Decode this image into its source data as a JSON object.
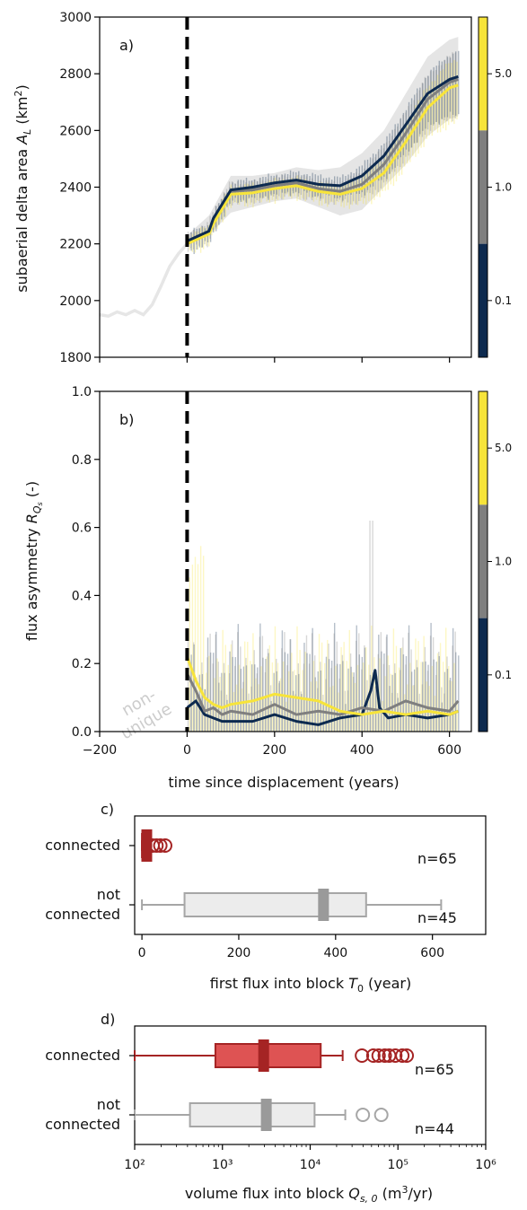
{
  "colors": {
    "navy": "#0d2a4f",
    "gray": "#7f7f7f",
    "yellow": "#f7e43a",
    "band": "#e5e5e5",
    "pre": "#e6e6e6",
    "red": "#a52424",
    "red_fill": "#dc4a4a",
    "box_gray": "#ececec",
    "box_edge": "#a6a6a6"
  },
  "chart_data": [
    {
      "panel": "a)",
      "type": "line",
      "xlabel": "",
      "ylabel": "subaerial delta area A_L (km²)",
      "xlim": [
        -200,
        650
      ],
      "ylim": [
        1800,
        3000
      ],
      "yticks": [
        1800,
        2000,
        2200,
        2400,
        2600,
        2800,
        3000
      ],
      "xticks": [
        -200,
        0,
        200,
        400,
        600
      ],
      "displacement_x": 0,
      "pre_displacement": {
        "x": [
          -200,
          -180,
          -160,
          -140,
          -120,
          -100,
          -80,
          -60,
          -40,
          -20,
          0
        ],
        "y": [
          1950,
          1945,
          1960,
          1950,
          1965,
          1950,
          1985,
          2050,
          2120,
          2165,
          2200
        ]
      },
      "band": {
        "x": [
          0,
          50,
          100,
          150,
          200,
          250,
          300,
          350,
          400,
          450,
          500,
          550,
          600,
          620
        ],
        "upper": [
          2230,
          2300,
          2440,
          2440,
          2450,
          2470,
          2460,
          2470,
          2520,
          2600,
          2730,
          2860,
          2920,
          2930
        ],
        "lower": [
          2200,
          2230,
          2310,
          2330,
          2350,
          2360,
          2330,
          2300,
          2320,
          2400,
          2480,
          2580,
          2640,
          2650
        ]
      },
      "series": [
        {
          "key": "navy",
          "x": [
            0,
            50,
            60,
            100,
            150,
            200,
            250,
            300,
            350,
            400,
            450,
            500,
            550,
            600,
            620
          ],
          "y": [
            2210,
            2245,
            2290,
            2390,
            2400,
            2415,
            2425,
            2410,
            2405,
            2440,
            2510,
            2620,
            2730,
            2780,
            2790
          ]
        },
        {
          "key": "gray",
          "x": [
            0,
            50,
            60,
            100,
            150,
            200,
            250,
            300,
            350,
            400,
            450,
            500,
            550,
            600,
            620
          ],
          "y": [
            2210,
            2240,
            2280,
            2385,
            2390,
            2405,
            2415,
            2395,
            2385,
            2410,
            2480,
            2590,
            2710,
            2770,
            2780
          ]
        },
        {
          "key": "yellow",
          "x": [
            0,
            50,
            60,
            100,
            150,
            200,
            250,
            300,
            350,
            400,
            450,
            500,
            550,
            600,
            620
          ],
          "y": [
            2200,
            2235,
            2270,
            2375,
            2380,
            2395,
            2405,
            2385,
            2375,
            2395,
            2450,
            2560,
            2680,
            2750,
            2760
          ]
        }
      ],
      "colorbar": {
        "labels": [
          "5.0",
          "1.0",
          "0.1"
        ]
      }
    },
    {
      "panel": "b)",
      "type": "line",
      "xlabel": "time since displacement (years)",
      "ylabel": "flux asymmetry R_Qs (-)",
      "xlim": [
        -200,
        650
      ],
      "ylim": [
        0,
        1.0
      ],
      "yticks": [
        0.0,
        0.2,
        0.4,
        0.6,
        0.8,
        1.0
      ],
      "xticks": [
        -200,
        0,
        200,
        400,
        600
      ],
      "annotation": "non-unique",
      "displacement_x": 0,
      "series": [
        {
          "key": "navy",
          "x": [
            0,
            20,
            40,
            60,
            80,
            100,
            150,
            200,
            250,
            300,
            350,
            400,
            420,
            430,
            440,
            460,
            500,
            550,
            600,
            620
          ],
          "y": [
            0.07,
            0.09,
            0.05,
            0.04,
            0.03,
            0.03,
            0.03,
            0.05,
            0.03,
            0.02,
            0.04,
            0.05,
            0.12,
            0.18,
            0.07,
            0.04,
            0.05,
            0.04,
            0.05,
            0.06
          ]
        },
        {
          "key": "gray",
          "x": [
            0,
            20,
            40,
            60,
            80,
            100,
            150,
            200,
            250,
            300,
            350,
            400,
            450,
            500,
            550,
            600,
            620
          ],
          "y": [
            0.17,
            0.12,
            0.06,
            0.07,
            0.05,
            0.06,
            0.05,
            0.08,
            0.05,
            0.06,
            0.05,
            0.07,
            0.06,
            0.09,
            0.07,
            0.06,
            0.09
          ]
        },
        {
          "key": "yellow",
          "x": [
            0,
            20,
            40,
            60,
            80,
            100,
            150,
            200,
            250,
            300,
            350,
            400,
            450,
            500,
            550,
            600,
            620
          ],
          "y": [
            0.22,
            0.15,
            0.1,
            0.08,
            0.07,
            0.08,
            0.09,
            0.11,
            0.1,
            0.09,
            0.06,
            0.05,
            0.06,
            0.05,
            0.06,
            0.05,
            0.06
          ]
        }
      ],
      "colorbar": {
        "labels": [
          "5.0",
          "1.0",
          "0.1"
        ]
      }
    },
    {
      "panel": "c)",
      "type": "box",
      "xlabel": "first flux into block T_0 (year)",
      "xlim": [
        -15,
        710
      ],
      "xticks": [
        0,
        200,
        400,
        600
      ],
      "groups": [
        {
          "label": "connected",
          "n_label": "n=65",
          "whisker_low": 0,
          "q1": 0,
          "median": 10,
          "q3": 15,
          "whisker_high": 15,
          "outliers": [
            22,
            30,
            38,
            48
          ],
          "color": "red"
        },
        {
          "label": "not connected",
          "n_label": "n=45",
          "whisker_low": 0,
          "q1": 88,
          "median": 375,
          "q3": 463,
          "whisker_high": 618,
          "outliers": [],
          "color": "gray"
        }
      ]
    },
    {
      "panel": "d)",
      "type": "box",
      "scale": "log",
      "xlabel": "volume flux into block Q_s,0 (m³/yr)",
      "xlim_log10": [
        2,
        6
      ],
      "xticks_log10": [
        2,
        3,
        4,
        5,
        6
      ],
      "xtick_labels": [
        "10²",
        "10³",
        "10⁴",
        "10⁵",
        "10⁶"
      ],
      "groups": [
        {
          "label": "connected",
          "n_label": "n=65",
          "whisker_low_log10": 2.0,
          "q1_log10": 2.92,
          "median_log10": 3.47,
          "q3_log10": 4.12,
          "whisker_high_log10": 4.37,
          "outliers_log10": [
            4.59,
            4.72,
            4.78,
            4.85,
            4.9,
            4.97,
            5.05,
            5.1
          ],
          "color": "red"
        },
        {
          "label": "not connected",
          "n_label": "n=44",
          "whisker_low_log10": 2.0,
          "q1_log10": 2.63,
          "median_log10": 3.5,
          "q3_log10": 4.05,
          "whisker_high_log10": 4.4,
          "outliers_log10": [
            4.6,
            4.81
          ],
          "color": "gray"
        }
      ]
    }
  ]
}
